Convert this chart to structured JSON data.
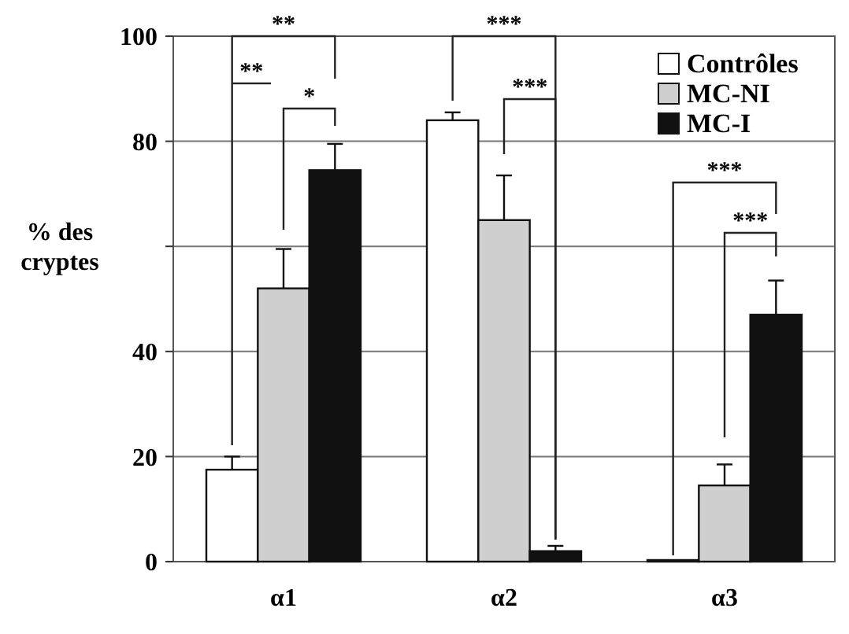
{
  "chart_data": {
    "type": "bar",
    "ylabel": "% des cryptes",
    "categories": [
      "α1",
      "α2",
      "α3"
    ],
    "series": [
      {
        "name": "Contrôles",
        "color": "#ffffff",
        "values": [
          17.5,
          84,
          0.3
        ],
        "errors": [
          2.5,
          1.5,
          null
        ]
      },
      {
        "name": "MC-NI",
        "color": "#cfcfcf",
        "values": [
          52,
          65,
          14.5
        ],
        "errors": [
          7.5,
          8.5,
          4
        ]
      },
      {
        "name": "MC-I",
        "color": "#111111",
        "values": [
          74.5,
          2,
          47
        ],
        "errors": [
          5,
          1,
          6.5
        ]
      }
    ],
    "ylim": [
      0,
      100
    ],
    "yticks": [
      0,
      20,
      40,
      {
        "value": 60,
        "label": null
      },
      80,
      100
    ],
    "grid": "y",
    "legend": "top right",
    "annotations": [
      "**",
      "**",
      "*",
      "***",
      "***",
      "***",
      "***"
    ]
  }
}
